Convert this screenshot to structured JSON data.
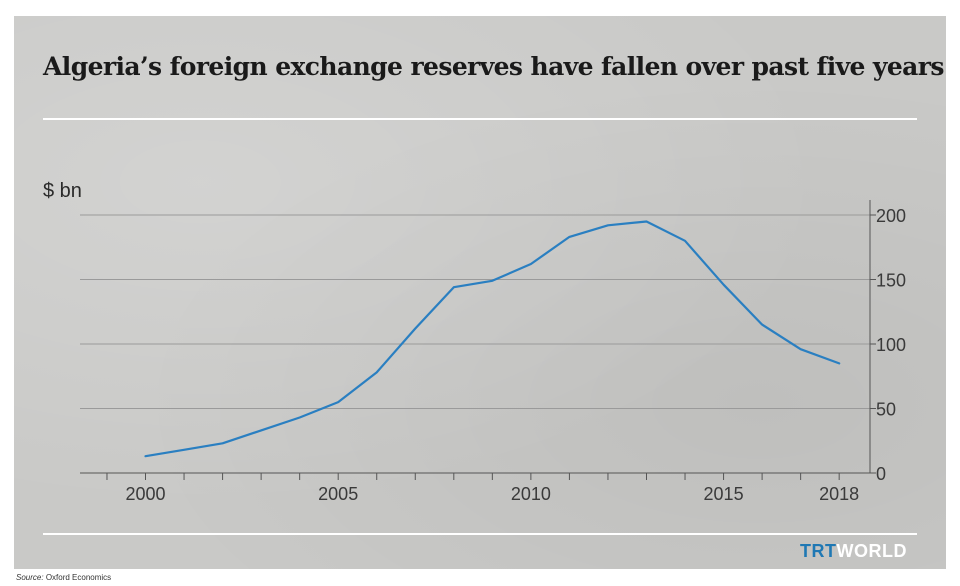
{
  "title": "Algeria’s foreign exchange reserves have fallen over past five years",
  "source": {
    "label": "Source:",
    "name": "Oxford Economics"
  },
  "logo": {
    "part1": "TRT",
    "part2": "WORLD"
  },
  "colors": {
    "line": "#2a7fc1",
    "grid": "#9a9a9a",
    "background": "#c9c9c7"
  },
  "chart_data": {
    "type": "line",
    "ylabel": "$ bn",
    "ylim": [
      0,
      200
    ],
    "yticks": [
      0,
      50,
      100,
      150,
      200
    ],
    "xlim": [
      1998.3,
      2018.8
    ],
    "xticks": [
      2000,
      2005,
      2010,
      2015,
      2018
    ],
    "y_axis_position": "right",
    "grid": true,
    "series": [
      {
        "x": [
          2000,
          2001,
          2002,
          2003,
          2004,
          2005,
          2006,
          2007,
          2008,
          2009,
          2010,
          2011,
          2012,
          2013,
          2014,
          2015,
          2016,
          2017,
          2018
        ],
        "values": [
          13,
          18,
          23,
          33,
          43,
          55,
          78,
          112,
          144,
          149,
          162,
          183,
          192,
          195,
          180,
          146,
          115,
          96,
          85
        ]
      }
    ]
  }
}
